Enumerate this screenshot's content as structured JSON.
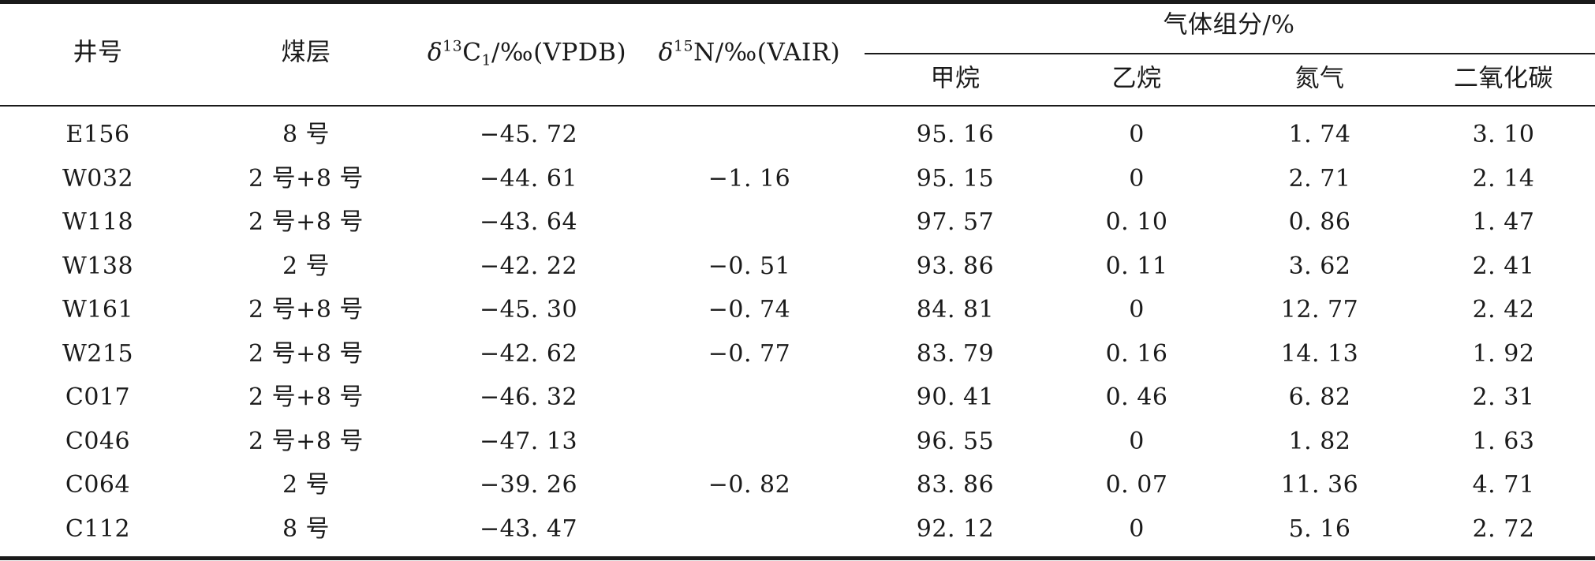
{
  "headers": {
    "well": "井号",
    "seam": "煤层",
    "d13c": {
      "delta": "δ",
      "sup": "13",
      "main": "C",
      "sub": "1",
      "rest": "/‰(VPDB)"
    },
    "d15n": {
      "delta": "δ",
      "sup": "15",
      "rest": "N/‰(VAIR)"
    },
    "gas_group": "气体组分/%",
    "methane": "甲烷",
    "ethane": "乙烷",
    "nitrogen": "氮气",
    "co2": "二氧化碳"
  },
  "rows": [
    {
      "well": "E156",
      "seam": "8 号",
      "d13c": "−45. 72",
      "d15n": "",
      "methane": "95. 16",
      "ethane": "0",
      "nitrogen": "1. 74",
      "co2": "3. 10"
    },
    {
      "well": "W032",
      "seam": "2 号+8 号",
      "d13c": "−44. 61",
      "d15n": "−1. 16",
      "methane": "95. 15",
      "ethane": "0",
      "nitrogen": "2. 71",
      "co2": "2. 14"
    },
    {
      "well": "W118",
      "seam": "2 号+8 号",
      "d13c": "−43. 64",
      "d15n": "",
      "methane": "97. 57",
      "ethane": "0. 10",
      "nitrogen": "0. 86",
      "co2": "1. 47"
    },
    {
      "well": "W138",
      "seam": "2 号",
      "d13c": "−42. 22",
      "d15n": "−0. 51",
      "methane": "93. 86",
      "ethane": "0. 11",
      "nitrogen": "3. 62",
      "co2": "2. 41"
    },
    {
      "well": "W161",
      "seam": "2 号+8 号",
      "d13c": "−45. 30",
      "d15n": "−0. 74",
      "methane": "84. 81",
      "ethane": "0",
      "nitrogen": "12. 77",
      "co2": "2. 42"
    },
    {
      "well": "W215",
      "seam": "2 号+8 号",
      "d13c": "−42. 62",
      "d15n": "−0. 77",
      "methane": "83. 79",
      "ethane": "0. 16",
      "nitrogen": "14. 13",
      "co2": "1. 92"
    },
    {
      "well": "C017",
      "seam": "2 号+8 号",
      "d13c": "−46. 32",
      "d15n": "",
      "methane": "90. 41",
      "ethane": "0. 46",
      "nitrogen": "6. 82",
      "co2": "2. 31"
    },
    {
      "well": "C046",
      "seam": "2 号+8 号",
      "d13c": "−47. 13",
      "d15n": "",
      "methane": "96. 55",
      "ethane": "0",
      "nitrogen": "1. 82",
      "co2": "1. 63"
    },
    {
      "well": "C064",
      "seam": "2 号",
      "d13c": "−39. 26",
      "d15n": "−0. 82",
      "methane": "83. 86",
      "ethane": "0. 07",
      "nitrogen": "11. 36",
      "co2": "4. 71"
    },
    {
      "well": "C112",
      "seam": "8 号",
      "d13c": "−43. 47",
      "d15n": "",
      "methane": "92. 12",
      "ethane": "0",
      "nitrogen": "5. 16",
      "co2": "2. 72"
    }
  ]
}
